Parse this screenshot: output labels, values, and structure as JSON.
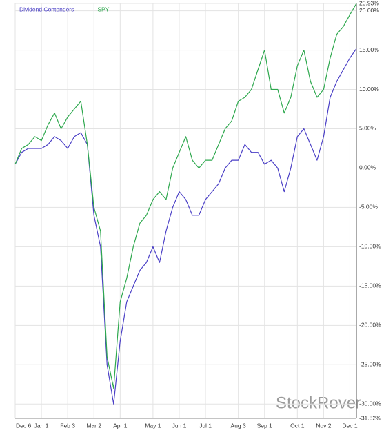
{
  "chart_data": {
    "type": "line",
    "categories": [
      "Dec 6",
      null,
      null,
      null,
      "Jan 1",
      null,
      null,
      null,
      "Feb 3",
      null,
      null,
      null,
      "Mar 2",
      null,
      null,
      null,
      "Apr 1",
      null,
      null,
      null,
      null,
      "May 1",
      null,
      null,
      null,
      "Jun 1",
      null,
      null,
      null,
      "Jul 1",
      null,
      null,
      null,
      null,
      "Aug 3",
      null,
      null,
      null,
      "Sep 1",
      null,
      null,
      null,
      null,
      "Oct 1",
      null,
      null,
      null,
      "Nov 2",
      null,
      null,
      null,
      "Dec 1",
      null
    ],
    "series": [
      {
        "name": "Dividend Contenders",
        "color": "#4a3fc6",
        "values": [
          0.5,
          2,
          2.5,
          2.5,
          2.5,
          3,
          4,
          3.5,
          2.5,
          4,
          4.5,
          3,
          -6,
          -10,
          -25,
          -30,
          -22,
          -17,
          -15,
          -13,
          -12,
          -10,
          -12,
          -8,
          -5,
          -3,
          -4,
          -6,
          -6,
          -4,
          -3,
          -2,
          0,
          1,
          1,
          3,
          2,
          2,
          0.5,
          1,
          0,
          -3,
          0,
          4,
          5,
          3,
          1,
          4,
          9,
          11,
          12.5,
          14,
          15.2
        ]
      },
      {
        "name": "SPY",
        "color": "#2ea84e",
        "values": [
          0.5,
          2.5,
          3,
          4,
          3.5,
          5.5,
          7,
          5,
          6.5,
          7.5,
          8.5,
          3,
          -5,
          -8,
          -24,
          -28,
          -17,
          -14,
          -10,
          -7,
          -6,
          -4,
          -3,
          -4,
          0,
          2,
          4,
          1,
          0,
          1,
          1,
          3,
          5,
          6,
          8.5,
          9,
          10,
          12.5,
          15,
          10,
          10,
          7,
          9,
          13,
          15,
          11,
          9,
          10,
          14,
          17,
          18,
          19.5,
          20.93
        ]
      }
    ],
    "ylim": [
      -31.82,
      20.93
    ],
    "yticks": [
      {
        "value": -31.82,
        "label": "-31.82%"
      },
      {
        "value": -30,
        "label": "-30.00%"
      },
      {
        "value": -25,
        "label": "-25.00%"
      },
      {
        "value": -20,
        "label": "-20.00%"
      },
      {
        "value": -15,
        "label": "-15.00%"
      },
      {
        "value": -10,
        "label": "-10.00%"
      },
      {
        "value": -5,
        "label": "-5.00%"
      },
      {
        "value": 0,
        "label": "0.00%"
      },
      {
        "value": 5,
        "label": "5.00%"
      },
      {
        "value": 10,
        "label": "10.00%"
      },
      {
        "value": 15,
        "label": "15.00%"
      },
      {
        "value": 20,
        "label": "20.00%"
      },
      {
        "value": 20.93,
        "label": "20.93%"
      }
    ],
    "grid": true,
    "legend": "top-left",
    "watermark": "StockRover"
  }
}
